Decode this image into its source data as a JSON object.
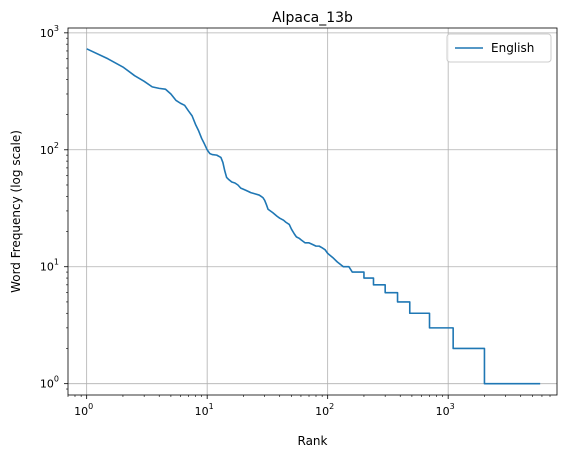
{
  "chart_data": {
    "type": "line",
    "title": "Alpaca_13b",
    "xlabel": "Rank",
    "ylabel": "Word Frequency (log scale)",
    "xscale": "log",
    "yscale": "log",
    "xlim": [
      0.7,
      8000
    ],
    "ylim": [
      0.8,
      1100
    ],
    "grid": true,
    "legend_position": "top-right",
    "x_ticks": [
      {
        "value": 1,
        "base": "10",
        "exp": "0"
      },
      {
        "value": 10,
        "base": "10",
        "exp": "1"
      },
      {
        "value": 100,
        "base": "10",
        "exp": "2"
      },
      {
        "value": 1000,
        "base": "10",
        "exp": "3"
      }
    ],
    "y_ticks": [
      {
        "value": 1,
        "base": "10",
        "exp": "0"
      },
      {
        "value": 10,
        "base": "10",
        "exp": "1"
      },
      {
        "value": 100,
        "base": "10",
        "exp": "2"
      },
      {
        "value": 1000,
        "base": "10",
        "exp": "3"
      }
    ],
    "series": [
      {
        "name": "English",
        "color": "#1f77b4",
        "points": [
          [
            1,
            730
          ],
          [
            1.5,
            600
          ],
          [
            2,
            510
          ],
          [
            2.5,
            430
          ],
          [
            3,
            385
          ],
          [
            3.5,
            345
          ],
          [
            4,
            335
          ],
          [
            4.5,
            330
          ],
          [
            5,
            300
          ],
          [
            5.5,
            265
          ],
          [
            6,
            250
          ],
          [
            6.5,
            240
          ],
          [
            7,
            215
          ],
          [
            7.5,
            195
          ],
          [
            8,
            165
          ],
          [
            8.5,
            145
          ],
          [
            9,
            125
          ],
          [
            9.5,
            112
          ],
          [
            10,
            100
          ],
          [
            10.5,
            93
          ],
          [
            11,
            91
          ],
          [
            12,
            90
          ],
          [
            13,
            86
          ],
          [
            13.5,
            78
          ],
          [
            14,
            66
          ],
          [
            14.5,
            58
          ],
          [
            15,
            56
          ],
          [
            16,
            53
          ],
          [
            17,
            52
          ],
          [
            18,
            50
          ],
          [
            19,
            47
          ],
          [
            20,
            46
          ],
          [
            21,
            45
          ],
          [
            22,
            44
          ],
          [
            23,
            43
          ],
          [
            25,
            42
          ],
          [
            27,
            41
          ],
          [
            28,
            40
          ],
          [
            29,
            39
          ],
          [
            30,
            37
          ],
          [
            31,
            34
          ],
          [
            32,
            31
          ],
          [
            35,
            29
          ],
          [
            38,
            27
          ],
          [
            40,
            26
          ],
          [
            43,
            25
          ],
          [
            45,
            24
          ],
          [
            48,
            23
          ],
          [
            50,
            21
          ],
          [
            53,
            19
          ],
          [
            55,
            18
          ],
          [
            58,
            17.5
          ],
          [
            60,
            17
          ],
          [
            65,
            16
          ],
          [
            70,
            16
          ],
          [
            75,
            15.5
          ],
          [
            80,
            15
          ],
          [
            85,
            15
          ],
          [
            90,
            14.5
          ],
          [
            95,
            14
          ],
          [
            100,
            13
          ],
          [
            110,
            12
          ],
          [
            120,
            11
          ],
          [
            135,
            10
          ],
          [
            150,
            10
          ],
          [
            160,
            9
          ],
          [
            200,
            9
          ],
          [
            200,
            8
          ],
          [
            240,
            8
          ],
          [
            240,
            7
          ],
          [
            300,
            7
          ],
          [
            300,
            6
          ],
          [
            380,
            6
          ],
          [
            380,
            5
          ],
          [
            480,
            5
          ],
          [
            480,
            4
          ],
          [
            700,
            4
          ],
          [
            700,
            3
          ],
          [
            1100,
            3
          ],
          [
            1100,
            2
          ],
          [
            2000,
            2
          ],
          [
            2000,
            1
          ],
          [
            5800,
            1
          ]
        ]
      }
    ]
  }
}
